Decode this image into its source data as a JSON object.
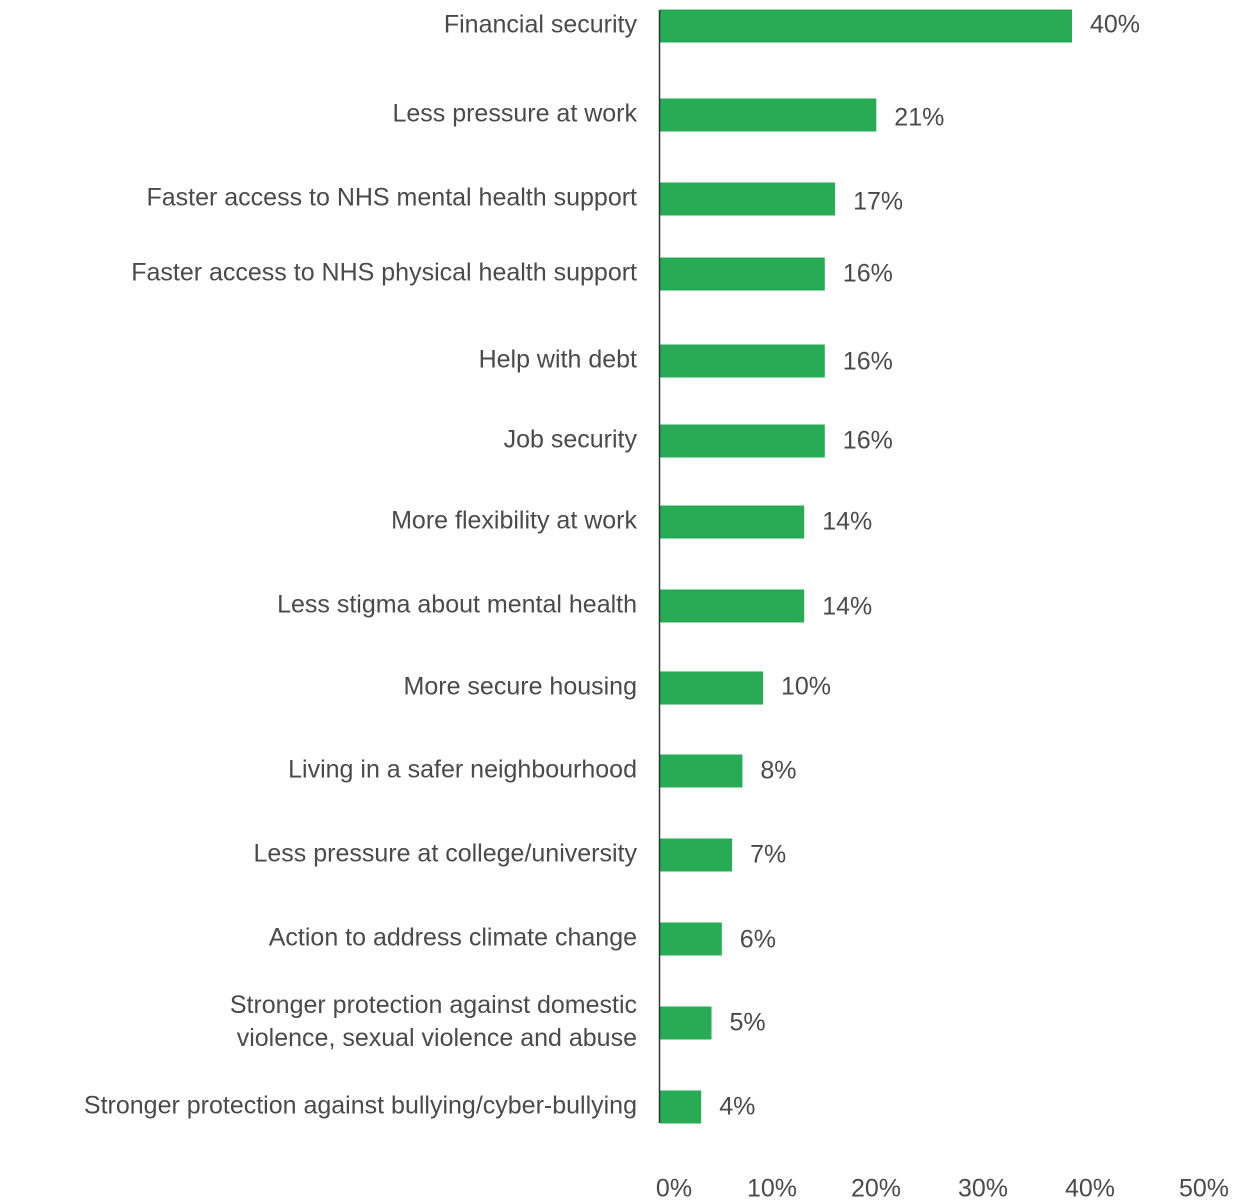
{
  "chart_data": {
    "type": "bar",
    "orientation": "horizontal",
    "categories": [
      "Financial security",
      "Less pressure at work",
      "Faster access to NHS mental health support",
      "Faster access to NHS physical health support",
      "Help with debt",
      "Job security",
      "More flexibility at work",
      "Less stigma about mental health",
      "More secure housing",
      "Living in a safer neighbourhood",
      "Less pressure at college/university",
      "Action to address climate change",
      "Stronger protection against domestic violence, sexual violence and abuse",
      "Stronger protection against bullying/cyber-bullying"
    ],
    "category_lines": [
      [
        "Financial security"
      ],
      [
        "Less pressure at work"
      ],
      [
        "Faster access to NHS mental health support"
      ],
      [
        "Faster access to NHS physical health support"
      ],
      [
        "Help with debt"
      ],
      [
        "Job security"
      ],
      [
        "More flexibility at work"
      ],
      [
        "Less stigma about mental health"
      ],
      [
        "More secure housing"
      ],
      [
        "Living in a safer neighbourhood"
      ],
      [
        "Less pressure at college/university"
      ],
      [
        "Action to address climate change"
      ],
      [
        "Stronger protection against domestic",
        "violence, sexual violence and abuse"
      ],
      [
        "Stronger protection against bullying/cyber-bullying"
      ]
    ],
    "values": [
      40,
      21,
      17,
      16,
      16,
      16,
      14,
      14,
      10,
      8,
      7,
      6,
      5,
      4
    ],
    "value_labels": [
      "40%",
      "21%",
      "17%",
      "16%",
      "16%",
      "16%",
      "14%",
      "14%",
      "10%",
      "8%",
      "7%",
      "6%",
      "5%",
      "4%"
    ],
    "xlim": [
      0,
      50
    ],
    "xticks": [
      0,
      10,
      20,
      30,
      40,
      50
    ],
    "xtick_labels": [
      "0%",
      "10%",
      "20%",
      "30%",
      "40%",
      "50%"
    ],
    "title": "",
    "xlabel": "",
    "ylabel": "",
    "grid": false,
    "legend": "none",
    "bar_color": "#27ab55",
    "axis_color": "#333333",
    "text_color": "#4a4a4a"
  }
}
